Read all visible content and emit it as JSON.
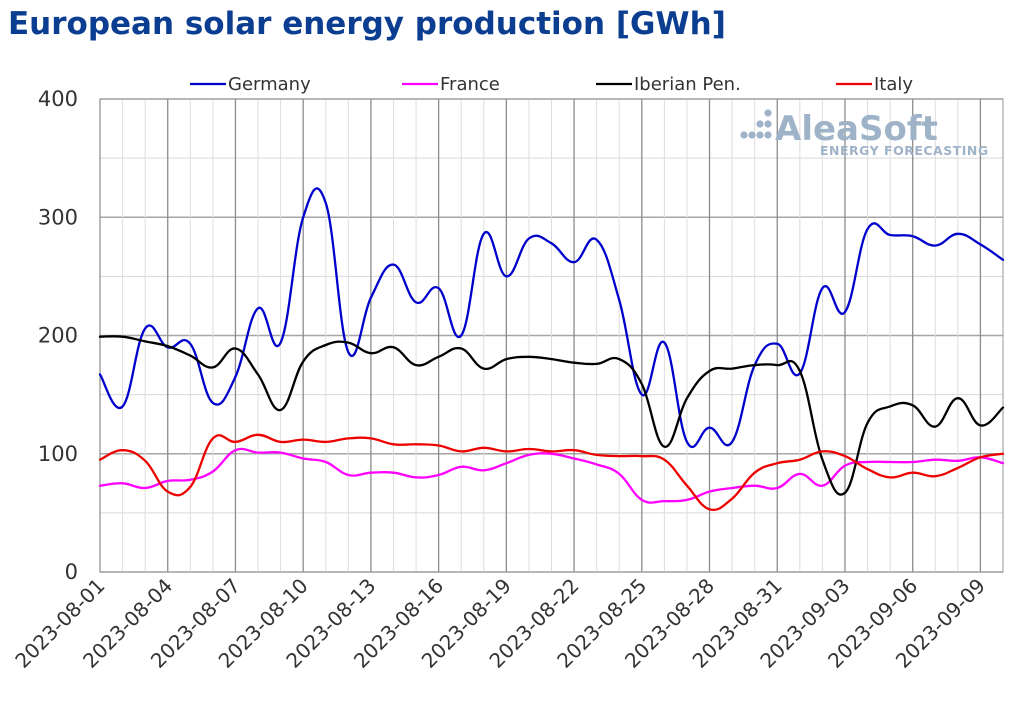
{
  "chart_data": {
    "type": "line",
    "title": "European solar energy production [GWh]",
    "xlabel": "",
    "ylabel": "",
    "ylim": [
      0,
      400
    ],
    "y_ticks": [
      "0",
      "100",
      "200",
      "300",
      "400"
    ],
    "x_ticks": [
      "2023-08-01",
      "2023-08-04",
      "2023-08-07",
      "2023-08-10",
      "2023-08-13",
      "2023-08-16",
      "2023-08-19",
      "2023-08-22",
      "2023-08-25",
      "2023-08-28",
      "2023-08-31",
      "2023-09-03",
      "2023-09-06",
      "2023-09-09"
    ],
    "x": [
      "2023-08-01",
      "2023-08-02",
      "2023-08-03",
      "2023-08-04",
      "2023-08-05",
      "2023-08-06",
      "2023-08-07",
      "2023-08-08",
      "2023-08-09",
      "2023-08-10",
      "2023-08-11",
      "2023-08-12",
      "2023-08-13",
      "2023-08-14",
      "2023-08-15",
      "2023-08-16",
      "2023-08-17",
      "2023-08-18",
      "2023-08-19",
      "2023-08-20",
      "2023-08-21",
      "2023-08-22",
      "2023-08-23",
      "2023-08-24",
      "2023-08-25",
      "2023-08-26",
      "2023-08-27",
      "2023-08-28",
      "2023-08-29",
      "2023-08-30",
      "2023-08-31",
      "2023-09-01",
      "2023-09-02",
      "2023-09-03",
      "2023-09-04",
      "2023-09-05",
      "2023-09-06",
      "2023-09-07",
      "2023-09-08",
      "2023-09-09",
      "2023-09-10"
    ],
    "grid": true,
    "legend_position": "top",
    "series": [
      {
        "name": "Germany",
        "color": "#0000cc",
        "values": [
          167,
          140,
          206,
          190,
          193,
          143,
          165,
          223,
          194,
          300,
          312,
          186,
          232,
          260,
          228,
          240,
          200,
          286,
          250,
          282,
          278,
          262,
          281,
          230,
          150,
          194,
          110,
          122,
          110,
          175,
          193,
          168,
          240,
          220,
          290,
          285,
          284,
          276,
          286,
          277,
          264
        ]
      },
      {
        "name": "France",
        "color": "#ff00ff",
        "values": [
          73,
          75,
          71,
          77,
          78,
          85,
          103,
          101,
          101,
          96,
          93,
          82,
          84,
          84,
          80,
          82,
          89,
          86,
          92,
          99,
          100,
          96,
          91,
          83,
          61,
          60,
          61,
          68,
          71,
          73,
          71,
          83,
          73,
          90,
          93,
          93,
          93,
          95,
          94,
          97,
          92
        ]
      },
      {
        "name": "Iberian Pen.",
        "color": "#000000",
        "values": [
          199,
          199,
          195,
          191,
          183,
          173,
          189,
          167,
          137,
          178,
          192,
          194,
          185,
          190,
          175,
          182,
          189,
          172,
          180,
          182,
          180,
          177,
          176,
          180,
          159,
          106,
          147,
          170,
          172,
          175,
          175,
          170,
          95,
          67,
          126,
          140,
          141,
          123,
          147,
          124,
          139
        ]
      },
      {
        "name": "Italy",
        "color": "#ee0000",
        "values": [
          95,
          103,
          94,
          68,
          72,
          113,
          110,
          116,
          110,
          112,
          110,
          113,
          113,
          108,
          108,
          107,
          102,
          105,
          102,
          104,
          102,
          103,
          99,
          98,
          98,
          95,
          73,
          53,
          62,
          84,
          92,
          95,
          102,
          98,
          87,
          80,
          84,
          81,
          88,
          97,
          100
        ]
      }
    ]
  },
  "watermark": {
    "brand": "AleaSoft",
    "tagline": "ENERGY FORECASTING"
  }
}
